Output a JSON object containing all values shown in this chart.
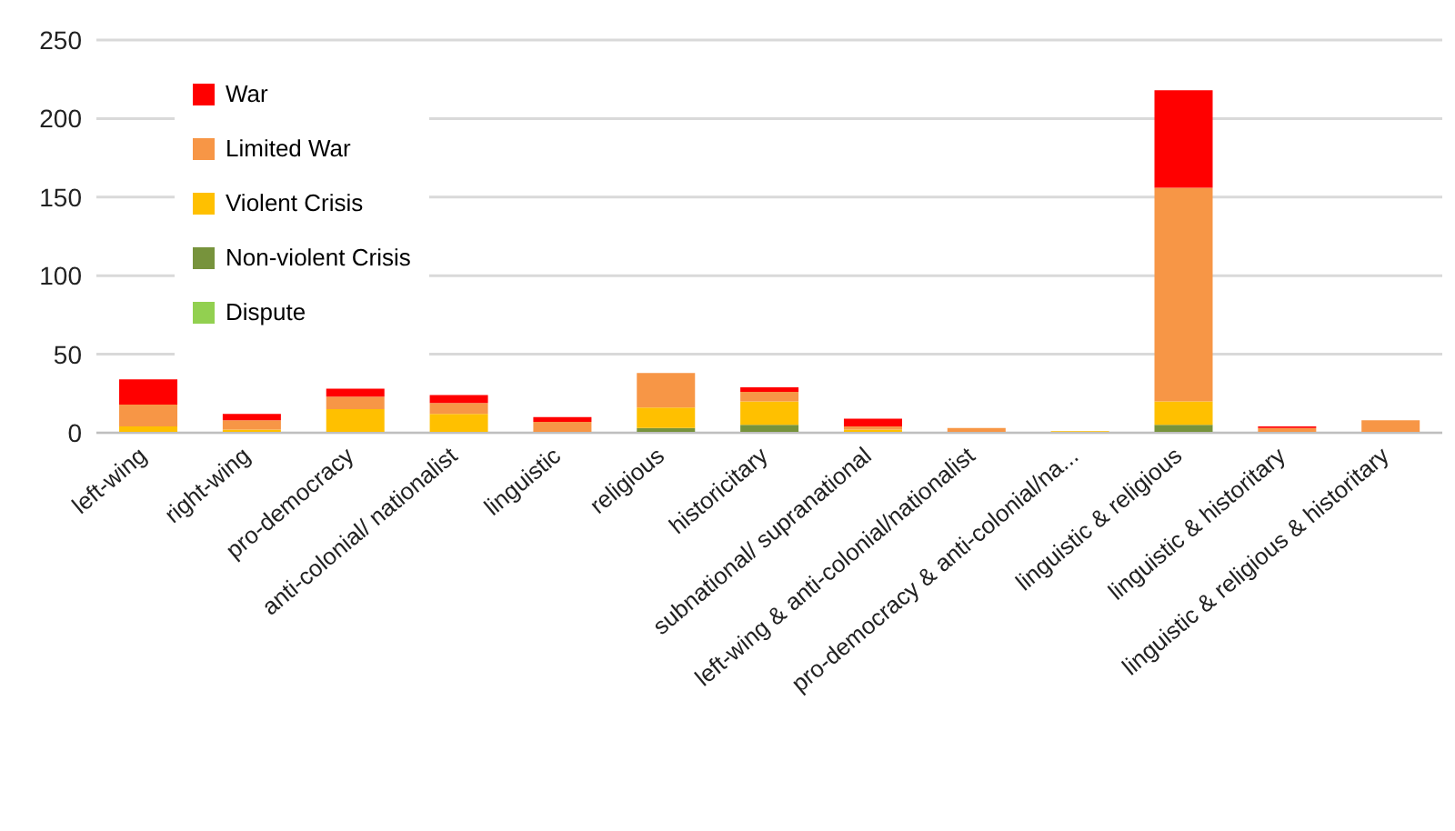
{
  "chart_data": {
    "type": "bar",
    "stacked": true,
    "categories": [
      "left-wing",
      "right-wing",
      "pro-democracy",
      "anti-colonial/ nationalist",
      "linguistic",
      "religious",
      "historicitary",
      "subnational/ supranational",
      "left-wing & anti-colonial/nationalist",
      "pro-democracy & anti-colonial/na...",
      "linguistic & religious",
      "linguistic & historitary",
      "linguistic & religious & historitary"
    ],
    "series": [
      {
        "name": "Dispute",
        "color": "#92d050",
        "values": [
          0,
          0,
          0,
          0,
          0,
          0,
          0,
          0,
          0,
          0,
          0,
          0,
          0
        ]
      },
      {
        "name": "Non-violent Crisis",
        "color": "#77933c",
        "values": [
          0,
          0,
          0,
          0,
          0,
          3,
          5,
          0,
          0,
          0,
          5,
          0,
          0
        ]
      },
      {
        "name": "Violent Crisis",
        "color": "#ffc000",
        "values": [
          4,
          2,
          15,
          12,
          0,
          13,
          15,
          2,
          0,
          1,
          15,
          0,
          0
        ]
      },
      {
        "name": "Limited War",
        "color": "#f79646",
        "values": [
          14,
          6,
          8,
          7,
          7,
          22,
          6,
          2,
          3,
          0,
          136,
          3,
          8
        ]
      },
      {
        "name": "War",
        "color": "#ff0000",
        "values": [
          16,
          4,
          5,
          5,
          3,
          0,
          3,
          5,
          0,
          0,
          62,
          1,
          0
        ]
      }
    ],
    "ylim": [
      0,
      250
    ],
    "yticks": [
      0,
      50,
      100,
      150,
      200,
      250
    ],
    "grid": "y",
    "legend": "top left"
  }
}
